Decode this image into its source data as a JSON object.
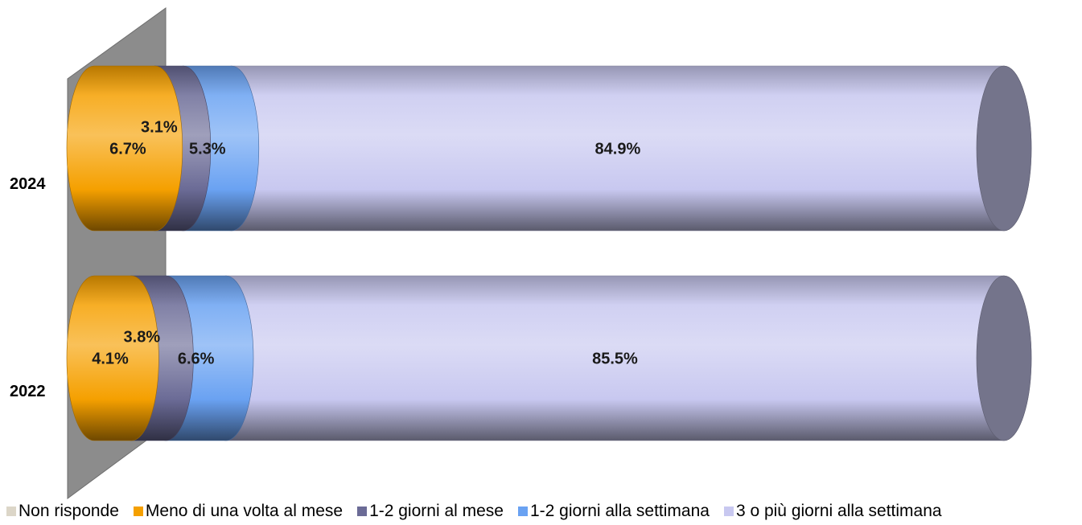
{
  "chart_data": {
    "type": "bar",
    "orientation": "horizontal",
    "stacked": true,
    "style": "3d-cylinder",
    "categories": [
      "2024",
      "2022"
    ],
    "series": [
      {
        "name": "Non risponde",
        "color": "#dcd6c8",
        "values": [
          0,
          0
        ],
        "labels": [
          "",
          ""
        ]
      },
      {
        "name": "Meno di una volta al mese",
        "color": "#f5a000",
        "values": [
          6.7,
          4.1
        ],
        "labels": [
          "6.7%",
          "4.1%"
        ]
      },
      {
        "name": "1-2 giorni al mese",
        "color": "#6b6b96",
        "values": [
          3.1,
          3.8
        ],
        "labels": [
          "3.1%",
          "3.8%"
        ]
      },
      {
        "name": "1-2 giorni alla settimana",
        "color": "#6aa2f2",
        "values": [
          5.3,
          6.6
        ],
        "labels": [
          "5.3%",
          "6.6%"
        ]
      },
      {
        "name": "3 o più giorni alla settimana",
        "color": "#c8c8f0",
        "values": [
          84.9,
          85.5
        ],
        "labels": [
          "84.9%",
          "85.5%"
        ]
      }
    ],
    "xlim": [
      0,
      100
    ],
    "legend_position": "bottom",
    "grid": false
  }
}
